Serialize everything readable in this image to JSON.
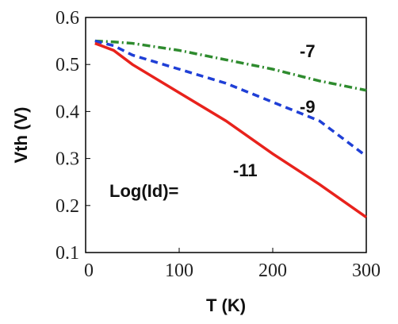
{
  "chart_data": {
    "type": "line",
    "x_label": "T (K)",
    "y_label": "Vth (V)",
    "annotation": "Log(Id)=",
    "x": [
      10,
      30,
      50,
      100,
      150,
      200,
      250,
      300
    ],
    "series": [
      {
        "name": "-7",
        "color": "#2e8b2e",
        "dash": "10 4 2 4",
        "values": [
          0.55,
          0.548,
          0.545,
          0.53,
          0.51,
          0.49,
          0.465,
          0.445
        ]
      },
      {
        "name": "-9",
        "color": "#1f3fd6",
        "dash": "9 6",
        "values": [
          0.55,
          0.54,
          0.52,
          0.49,
          0.46,
          0.42,
          0.38,
          0.305
        ]
      },
      {
        "name": "-11",
        "color": "#e8221c",
        "dash": "none",
        "values": [
          0.545,
          0.53,
          0.5,
          0.44,
          0.38,
          0.31,
          0.245,
          0.175
        ]
      }
    ],
    "xlim": [
      0,
      300
    ],
    "xticks": [
      0,
      100,
      200,
      300
    ],
    "ylim": [
      0.1,
      0.6
    ],
    "yticks": [
      0.1,
      0.2,
      0.3,
      0.4,
      0.5,
      0.6
    ]
  }
}
